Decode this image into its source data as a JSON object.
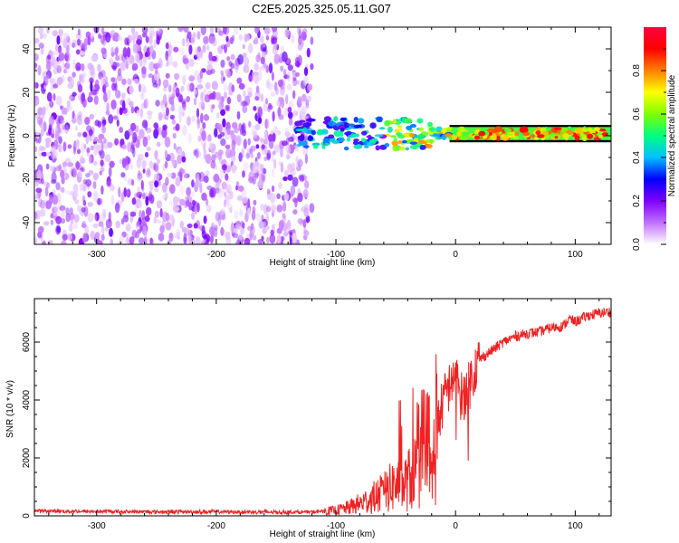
{
  "title": "C2E5.2025.325.05.11.G07",
  "colors": {
    "snr_line": "#ee2222",
    "axis": "#000000",
    "colorbar": [
      "#ffffff",
      "#c070ff",
      "#8000ff",
      "#0000ff",
      "#00c0ff",
      "#00ff80",
      "#80ff00",
      "#ffff00",
      "#ff8000",
      "#ff0000",
      "#ff0040"
    ]
  },
  "chart_data": [
    {
      "type": "heatmap",
      "name": "spectrogram",
      "xlabel": "Height of straight line (km)",
      "ylabel": "Frequency (Hz)",
      "xlim": [
        -352,
        130
      ],
      "ylim": [
        -50,
        50
      ],
      "x_ticks": [
        -300,
        -200,
        -100,
        0,
        100
      ],
      "x_tick_labels": [
        "-300",
        "-200",
        "-100",
        "0",
        "100"
      ],
      "y_ticks": [
        -40,
        -20,
        0,
        20,
        40
      ],
      "y_tick_labels": [
        "-40",
        "-20",
        "0",
        "20",
        "40"
      ],
      "noise_region_x": [
        -352,
        -120
      ],
      "signal_region_x": [
        -132,
        130
      ],
      "signal_center_freq_hz": 1,
      "colorbar": {
        "label": "Normalized spectral amplitude",
        "range": [
          0,
          1
        ],
        "ticks": [
          0.0,
          0.2,
          0.4,
          0.6,
          0.8
        ],
        "tick_labels": [
          "0.0",
          "0.2",
          "0.4",
          "0.6",
          "0.8"
        ]
      }
    },
    {
      "type": "line",
      "name": "snr",
      "xlabel": "Height of straight line (km)",
      "ylabel": "SNR (10 * v/v)",
      "xlim": [
        -352,
        130
      ],
      "ylim": [
        0,
        7500
      ],
      "x_ticks": [
        -300,
        -200,
        -100,
        0,
        100
      ],
      "x_tick_labels": [
        "-300",
        "-200",
        "-100",
        "0",
        "100"
      ],
      "y_ticks": [
        0,
        2000,
        4000,
        6000
      ],
      "y_tick_labels": [
        "0",
        "2000",
        "4000",
        "6000"
      ],
      "x": [
        -352,
        -300,
        -250,
        -200,
        -150,
        -120,
        -100,
        -90,
        -80,
        -70,
        -60,
        -55,
        -50,
        -45,
        -40,
        -35,
        -30,
        -25,
        -20,
        -15,
        -10,
        -5,
        0,
        5,
        10,
        15,
        20,
        30,
        40,
        50,
        60,
        70,
        80,
        90,
        95,
        100,
        110,
        120,
        130
      ],
      "y": [
        170,
        150,
        140,
        140,
        130,
        130,
        190,
        280,
        420,
        600,
        800,
        950,
        1100,
        1000,
        1200,
        1500,
        1700,
        1500,
        1300,
        3200,
        4000,
        4500,
        4800,
        4100,
        4300,
        5000,
        5400,
        5700,
        6000,
        6200,
        6300,
        6350,
        6500,
        6550,
        6800,
        6700,
        6900,
        7000,
        7050
      ]
    }
  ]
}
